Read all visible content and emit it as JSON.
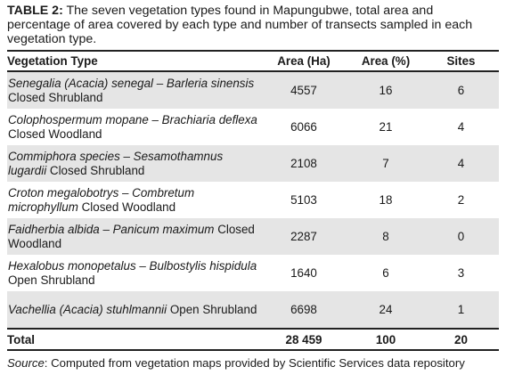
{
  "caption": {
    "label": "TABLE 2:",
    "text": " The seven vegetation types found in Mapungubwe, total area and percentage of area covered by each type and number of transects sampled in each vegetation type."
  },
  "table": {
    "headers": [
      "Vegetation Type",
      "Area (Ha)",
      "Area (%)",
      "Sites"
    ],
    "rows": [
      {
        "species": "Senegalia (Acacia) senegal – Barleria sinensis",
        "community": " Closed Shrubland",
        "area_ha": "4557",
        "area_pct": "16",
        "sites": "6"
      },
      {
        "species": "Colophospermum mopane – Brachiaria deflexa",
        "community": " Closed Woodland",
        "area_ha": "6066",
        "area_pct": "21",
        "sites": "4"
      },
      {
        "species": "Commiphora species – Sesamothamnus lugardii",
        "community": " Closed Shrubland",
        "area_ha": "2108",
        "area_pct": "7",
        "sites": "4"
      },
      {
        "species": "Croton megalobotrys – Combretum microphyllum",
        "community": " Closed Woodland",
        "area_ha": "5103",
        "area_pct": "18",
        "sites": "2"
      },
      {
        "species": "Faidherbia albida – Panicum maximum",
        "community": " Closed Woodland",
        "area_ha": "2287",
        "area_pct": "8",
        "sites": "0"
      },
      {
        "species": "Hexalobus monopetalus – Bulbostylis hispidula",
        "community": " Open Shrubland",
        "area_ha": "1640",
        "area_pct": "6",
        "sites": "3"
      },
      {
        "species": "Vachellia (Acacia) stuhlmannii",
        "community": " Open Shrubland",
        "area_ha": "6698",
        "area_pct": "24",
        "sites": "1"
      }
    ],
    "total": {
      "label": "Total",
      "area_ha": "28 459",
      "area_pct": "100",
      "sites": "20"
    }
  },
  "source": {
    "label": "Source",
    "text": ": Computed from vegetation maps provided by Scientific Services data repository"
  }
}
